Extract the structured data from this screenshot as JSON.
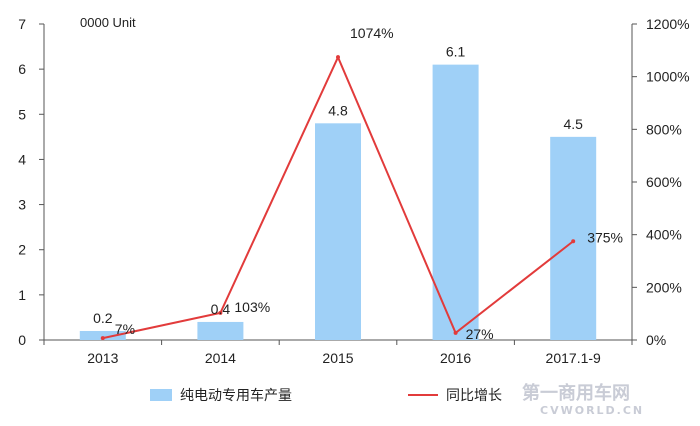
{
  "chart_data": {
    "type": "bar",
    "unit_label": "0000 Unit",
    "categories": [
      "2013",
      "2014",
      "2015",
      "2016",
      "2017.1-9"
    ],
    "series": [
      {
        "name": "纯电动专用车产量",
        "kind": "bar",
        "axis": "left",
        "color": "#9fd0f7",
        "values": [
          0.2,
          0.4,
          4.8,
          6.1,
          4.5
        ],
        "labels": [
          "0.2",
          "0.4",
          "4.8",
          "6.1",
          "4.5"
        ]
      },
      {
        "name": "同比增长",
        "kind": "line",
        "axis": "right",
        "color": "#e23b3b",
        "values": [
          7,
          103,
          1074,
          27,
          375
        ],
        "labels": [
          "7%",
          "103%",
          "1074%",
          "27%",
          "375%"
        ]
      }
    ],
    "y_left": {
      "min": 0,
      "max": 7,
      "ticks": [
        "0",
        "1",
        "2",
        "3",
        "4",
        "5",
        "6",
        "7"
      ]
    },
    "y_right": {
      "min": 0,
      "max": 1200,
      "ticks": [
        "0%",
        "200%",
        "400%",
        "600%",
        "800%",
        "1000%",
        "1200%"
      ]
    },
    "legend_position": "bottom",
    "grid": false
  },
  "watermark": {
    "text": "第一商用车网",
    "subtext": "CVWORLD.CN"
  }
}
